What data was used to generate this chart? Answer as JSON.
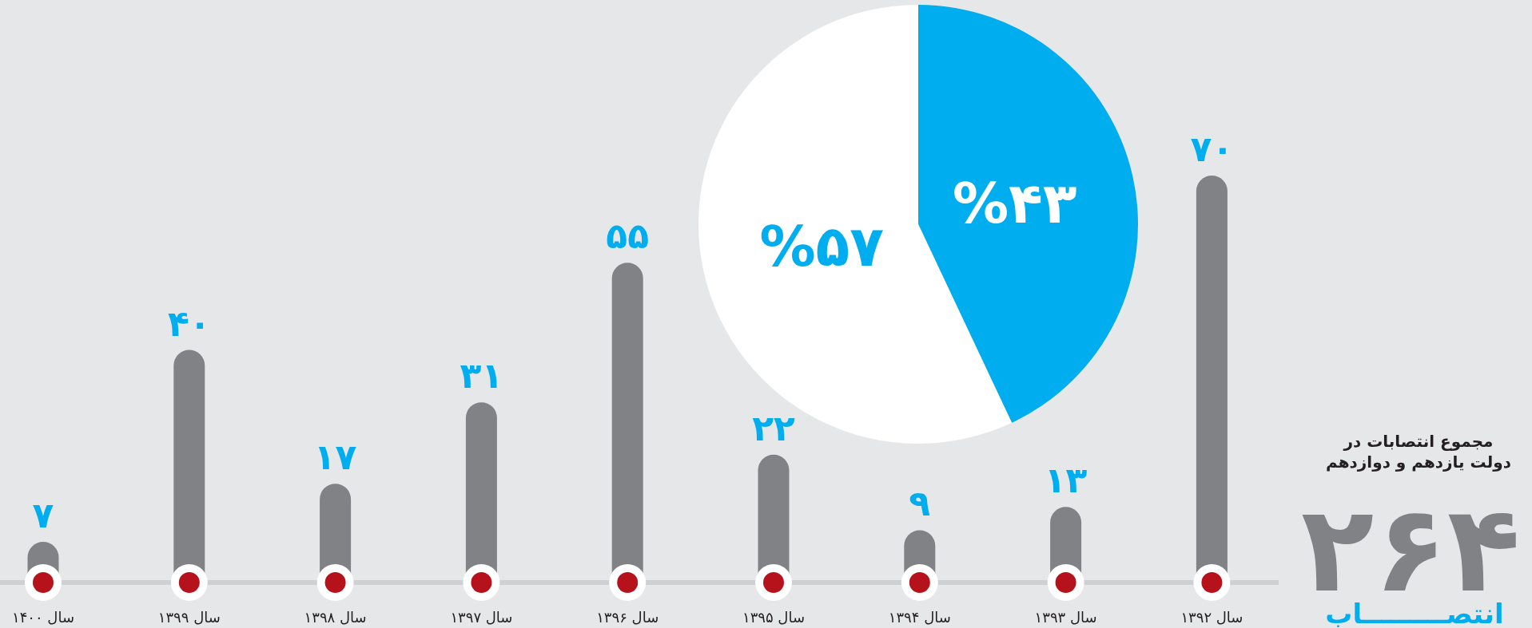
{
  "chart_data": [
    {
      "type": "bar",
      "categories": [
        "سال ۱۴۰۰",
        "سال ۱۳۹۹",
        "سال ۱۳۹۸",
        "سال ۱۳۹۷",
        "سال ۱۳۹۶",
        "سال ۱۳۹۵",
        "سال ۱۳۹۴",
        "سال ۱۳۹۳",
        "سال ۱۳۹۲"
      ],
      "values": [
        7,
        40,
        17,
        31,
        55,
        22,
        9,
        13,
        70
      ],
      "value_labels": [
        "۷",
        "۴۰",
        "۱۷",
        "۳۱",
        "۵۵",
        "۲۲",
        "۹",
        "۱۳",
        "۷۰"
      ],
      "color": "#808285",
      "annotations": [
        "مجموع انتصابات در دولت یازدهم و دوازدهم",
        "۲۶۴",
        "انتصـــــــــاب"
      ]
    },
    {
      "type": "pie",
      "categories": [
        null,
        null
      ],
      "values": [
        43,
        57
      ],
      "colors": [
        "#00aeef",
        "#ffffff"
      ],
      "value_labels": [
        "%۴۳",
        "%۵۷"
      ]
    }
  ]
}
